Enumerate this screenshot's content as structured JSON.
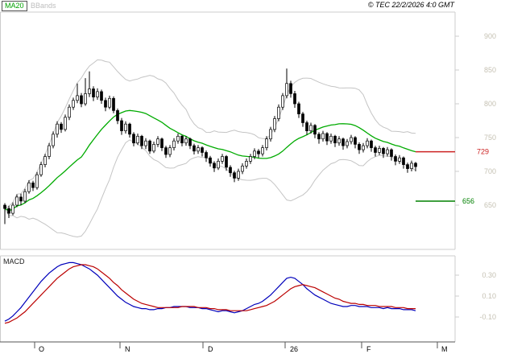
{
  "header": {
    "ma20_label": "MA20",
    "bbands_label": "BBands",
    "copyright": "© TEC 22/2/2026 4:0 GMT"
  },
  "panels": {
    "macd_label": "MACD"
  },
  "colors": {
    "ma20": "#00ab00",
    "bbands": "#c4c4c4",
    "candle": "#000000",
    "macd_line": "#0000bb",
    "macd_signal": "#bb0000",
    "axis_text": "#c6c2b4",
    "grid": "#cccccc",
    "axis": "#555555"
  },
  "chart_data": {
    "type": "candlestick",
    "title": "",
    "price_axis": {
      "ticks": [
        900,
        850,
        800,
        750,
        700,
        650
      ],
      "visible_range": [
        584,
        936
      ]
    },
    "macd_axis": {
      "ticks": [
        0.3,
        0.1,
        -0.1
      ]
    },
    "x_axis": {
      "labels": [
        "O",
        "N",
        "D",
        "26",
        "F",
        "M"
      ],
      "tick_x": [
        43,
        149,
        252,
        354,
        449,
        543
      ],
      "label_x": [
        48,
        155,
        258,
        360,
        455,
        548
      ]
    },
    "levels": [
      {
        "name": "resistance",
        "value": 729,
        "label": "729",
        "color": "#cc2222",
        "label_right": 607
      },
      {
        "name": "support",
        "value": 656,
        "label": "656",
        "color": "#008000",
        "label_right": 589
      }
    ],
    "indicators": {
      "ma20_period": 20,
      "bband_period": 20,
      "bband_stddev": 2
    },
    "candles_ohlc": [
      [
        650,
        653,
        622,
        645
      ],
      [
        645,
        649,
        631,
        638
      ],
      [
        638,
        654,
        635,
        650
      ],
      [
        650,
        666,
        647,
        662
      ],
      [
        662,
        667,
        650,
        656
      ],
      [
        656,
        674,
        653,
        670
      ],
      [
        670,
        687,
        667,
        683
      ],
      [
        683,
        686,
        671,
        676
      ],
      [
        676,
        699,
        673,
        695
      ],
      [
        695,
        714,
        692,
        710
      ],
      [
        710,
        726,
        706,
        722
      ],
      [
        722,
        742,
        718,
        738
      ],
      [
        738,
        759,
        734,
        755
      ],
      [
        755,
        774,
        750,
        770
      ],
      [
        770,
        773,
        757,
        762
      ],
      [
        762,
        784,
        759,
        780
      ],
      [
        780,
        799,
        776,
        795
      ],
      [
        795,
        809,
        791,
        805
      ],
      [
        805,
        830,
        801,
        812
      ],
      [
        812,
        816,
        795,
        800
      ],
      [
        800,
        838,
        797,
        815
      ],
      [
        815,
        848,
        810,
        822
      ],
      [
        822,
        826,
        804,
        810
      ],
      [
        810,
        823,
        806,
        818
      ],
      [
        818,
        821,
        800,
        805
      ],
      [
        805,
        809,
        789,
        795
      ],
      [
        795,
        812,
        792,
        808
      ],
      [
        808,
        811,
        786,
        790
      ],
      [
        790,
        793,
        770,
        775
      ],
      [
        775,
        779,
        754,
        760
      ],
      [
        760,
        774,
        756,
        770
      ],
      [
        770,
        772,
        750,
        755
      ],
      [
        755,
        758,
        737,
        742
      ],
      [
        742,
        756,
        739,
        752
      ],
      [
        752,
        754,
        733,
        738
      ],
      [
        738,
        749,
        733,
        745
      ],
      [
        745,
        747,
        726,
        730
      ],
      [
        730,
        744,
        727,
        740
      ],
      [
        740,
        752,
        736,
        748
      ],
      [
        748,
        750,
        730,
        735
      ],
      [
        735,
        738,
        720,
        725
      ],
      [
        725,
        739,
        721,
        735
      ],
      [
        735,
        749,
        731,
        745
      ],
      [
        745,
        756,
        741,
        752
      ],
      [
        752,
        754,
        737,
        742
      ],
      [
        742,
        752,
        738,
        748
      ],
      [
        748,
        750,
        733,
        738
      ],
      [
        738,
        741,
        725,
        730
      ],
      [
        730,
        739,
        726,
        735
      ],
      [
        735,
        737,
        722,
        728
      ],
      [
        728,
        731,
        714,
        720
      ],
      [
        720,
        723,
        707,
        712
      ],
      [
        712,
        715,
        699,
        705
      ],
      [
        705,
        719,
        702,
        715
      ],
      [
        715,
        726,
        711,
        722
      ],
      [
        722,
        724,
        701,
        706
      ],
      [
        706,
        709,
        692,
        698
      ],
      [
        698,
        701,
        684,
        690
      ],
      [
        690,
        704,
        686,
        700
      ],
      [
        700,
        712,
        696,
        708
      ],
      [
        708,
        719,
        704,
        715
      ],
      [
        715,
        726,
        711,
        722
      ],
      [
        722,
        734,
        718,
        730
      ],
      [
        730,
        733,
        720,
        726
      ],
      [
        726,
        739,
        722,
        735
      ],
      [
        735,
        752,
        731,
        748
      ],
      [
        748,
        766,
        744,
        762
      ],
      [
        762,
        782,
        758,
        778
      ],
      [
        778,
        799,
        774,
        795
      ],
      [
        795,
        816,
        791,
        812
      ],
      [
        812,
        852,
        808,
        830
      ],
      [
        830,
        834,
        809,
        815
      ],
      [
        815,
        819,
        794,
        800
      ],
      [
        800,
        803,
        779,
        785
      ],
      [
        785,
        788,
        766,
        772
      ],
      [
        772,
        775,
        754,
        760
      ],
      [
        760,
        772,
        756,
        768
      ],
      [
        768,
        770,
        749,
        755
      ],
      [
        755,
        758,
        741,
        748
      ],
      [
        748,
        760,
        744,
        756
      ],
      [
        756,
        758,
        739,
        745
      ],
      [
        745,
        756,
        741,
        752
      ],
      [
        752,
        754,
        736,
        742
      ],
      [
        742,
        752,
        738,
        748
      ],
      [
        748,
        750,
        732,
        738
      ],
      [
        738,
        748,
        734,
        744
      ],
      [
        744,
        754,
        740,
        750
      ],
      [
        750,
        752,
        734,
        740
      ],
      [
        740,
        743,
        726,
        732
      ],
      [
        732,
        742,
        728,
        738
      ],
      [
        738,
        749,
        734,
        745
      ],
      [
        745,
        747,
        729,
        735
      ],
      [
        735,
        738,
        722,
        728
      ],
      [
        728,
        738,
        724,
        734
      ],
      [
        734,
        736,
        720,
        726
      ],
      [
        726,
        736,
        722,
        732
      ],
      [
        732,
        734,
        716,
        722
      ],
      [
        722,
        725,
        709,
        715
      ],
      [
        715,
        724,
        711,
        720
      ],
      [
        720,
        722,
        704,
        710
      ],
      [
        710,
        713,
        698,
        704
      ],
      [
        704,
        716,
        700,
        712
      ],
      [
        712,
        714,
        700,
        707
      ]
    ],
    "macd": [
      -0.14,
      -0.12,
      -0.09,
      -0.05,
      -0.01,
      0.04,
      0.09,
      0.14,
      0.19,
      0.24,
      0.28,
      0.32,
      0.35,
      0.38,
      0.4,
      0.41,
      0.42,
      0.42,
      0.41,
      0.4,
      0.38,
      0.36,
      0.33,
      0.3,
      0.26,
      0.22,
      0.18,
      0.14,
      0.1,
      0.07,
      0.04,
      0.02,
      0.0,
      -0.01,
      -0.02,
      -0.02,
      -0.03,
      -0.03,
      -0.02,
      -0.02,
      -0.01,
      -0.01,
      0.0,
      0.0,
      0.0,
      0.0,
      -0.01,
      -0.01,
      -0.01,
      -0.02,
      -0.02,
      -0.03,
      -0.04,
      -0.05,
      -0.04,
      -0.04,
      -0.05,
      -0.06,
      -0.05,
      -0.04,
      -0.02,
      0.0,
      0.02,
      0.03,
      0.05,
      0.08,
      0.11,
      0.15,
      0.19,
      0.23,
      0.27,
      0.28,
      0.27,
      0.24,
      0.21,
      0.17,
      0.14,
      0.11,
      0.09,
      0.07,
      0.05,
      0.03,
      0.02,
      0.01,
      0.0,
      0.0,
      0.01,
      0.01,
      0.0,
      0.0,
      0.0,
      -0.01,
      -0.01,
      -0.01,
      -0.02,
      -0.01,
      -0.02,
      -0.02,
      -0.02,
      -0.03,
      -0.03,
      -0.03,
      -0.04
    ],
    "macd_signal": [
      -0.16,
      -0.15,
      -0.13,
      -0.11,
      -0.08,
      -0.05,
      -0.01,
      0.03,
      0.07,
      0.11,
      0.15,
      0.19,
      0.23,
      0.27,
      0.3,
      0.33,
      0.36,
      0.38,
      0.39,
      0.4,
      0.4,
      0.39,
      0.38,
      0.36,
      0.33,
      0.3,
      0.27,
      0.23,
      0.2,
      0.16,
      0.13,
      0.1,
      0.07,
      0.05,
      0.03,
      0.02,
      0.01,
      0.0,
      -0.01,
      -0.01,
      -0.01,
      -0.01,
      -0.01,
      -0.01,
      0.0,
      0.0,
      0.0,
      0.0,
      -0.01,
      -0.01,
      -0.01,
      -0.02,
      -0.02,
      -0.03,
      -0.03,
      -0.03,
      -0.04,
      -0.04,
      -0.04,
      -0.04,
      -0.04,
      -0.03,
      -0.02,
      -0.01,
      0.0,
      0.01,
      0.03,
      0.05,
      0.08,
      0.11,
      0.14,
      0.17,
      0.19,
      0.2,
      0.21,
      0.2,
      0.19,
      0.18,
      0.16,
      0.14,
      0.12,
      0.1,
      0.08,
      0.07,
      0.05,
      0.04,
      0.03,
      0.03,
      0.02,
      0.02,
      0.01,
      0.01,
      0.01,
      0.0,
      0.0,
      0.0,
      0.0,
      -0.01,
      -0.01,
      -0.01,
      -0.02,
      -0.02,
      -0.02
    ]
  }
}
